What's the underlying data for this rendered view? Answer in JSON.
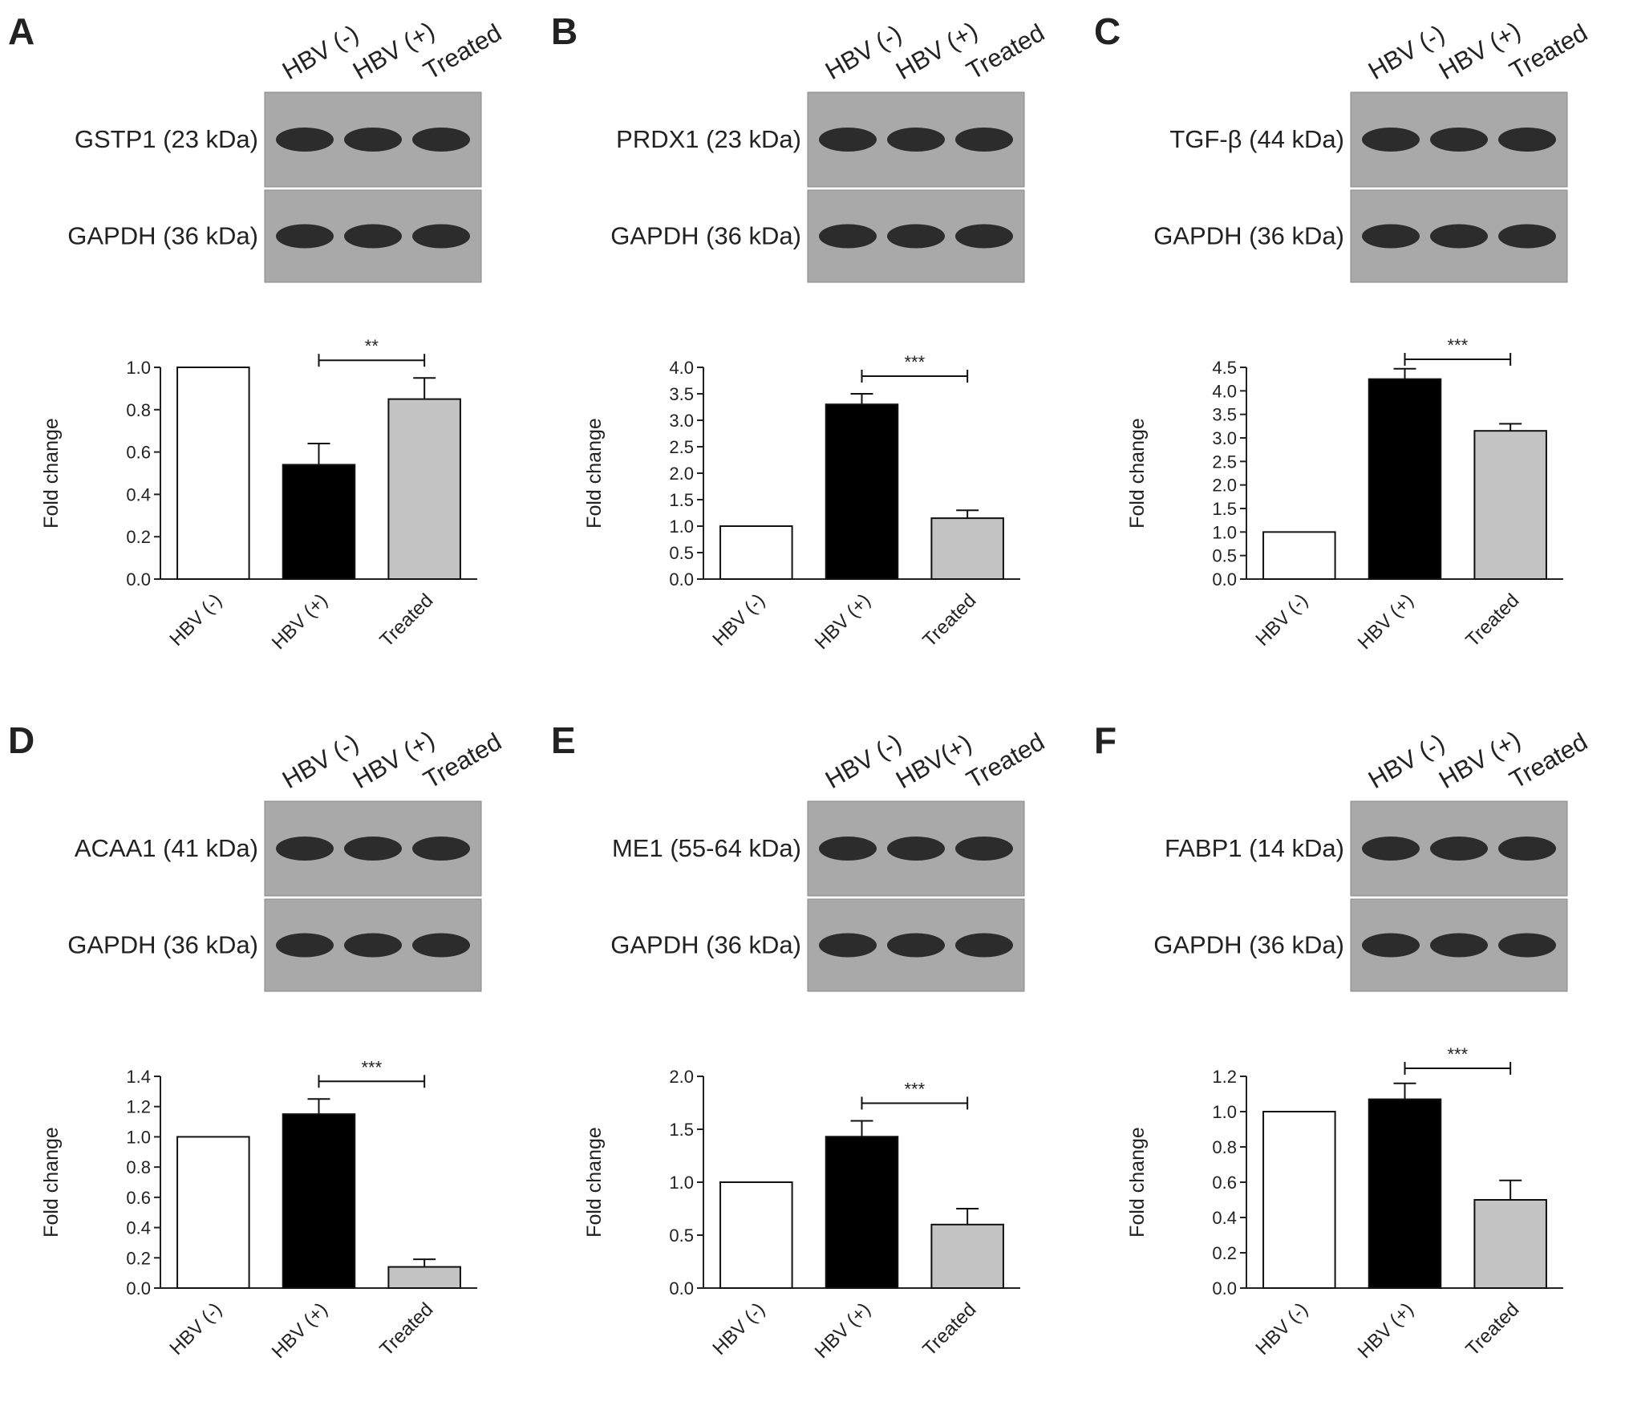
{
  "chart_data": [
    {
      "type": "bar",
      "panel": "A",
      "lanes": [
        "HBV (-)",
        "HBV (+)",
        "Treated"
      ],
      "blots": [
        "GSTP1 (23 kDa)",
        "GAPDH (36 kDa)"
      ],
      "ylabel": "Fold change",
      "categories": [
        "HBV (-)",
        "HBV (+)",
        "Treated"
      ],
      "values": [
        1.0,
        0.54,
        0.85
      ],
      "errors": [
        null,
        0.1,
        0.1
      ],
      "colors": [
        "#ffffff",
        "#000000",
        "#c4c4c4"
      ],
      "ylim": [
        0,
        1
      ],
      "yticks": [
        {
          "value": 0,
          "label": "0.0"
        },
        0.2,
        0.4,
        0.6,
        0.8,
        {
          "value": 1,
          "label": "1.0"
        }
      ],
      "significance": "**"
    },
    {
      "type": "bar",
      "panel": "B",
      "lanes": [
        "HBV (-)",
        "HBV (+)",
        "Treated"
      ],
      "blots": [
        "PRDX1 (23 kDa)",
        "GAPDH (36 kDa)"
      ],
      "ylabel": "Fold change",
      "categories": [
        "HBV (-)",
        "HBV (+)",
        "Treated"
      ],
      "values": [
        1.0,
        3.3,
        1.15
      ],
      "errors": [
        null,
        0.2,
        0.15
      ],
      "colors": [
        "#ffffff",
        "#000000",
        "#c4c4c4"
      ],
      "ylim": [
        0,
        4
      ],
      "yticks": [
        {
          "value": 0,
          "label": "0.0"
        },
        0.5,
        {
          "value": 1,
          "label": "1.0"
        },
        1.5,
        {
          "value": 2,
          "label": "2.0"
        },
        2.5,
        {
          "value": 3,
          "label": "3.0"
        },
        3.5,
        {
          "value": 4,
          "label": "4.0"
        }
      ],
      "significance": "***"
    },
    {
      "type": "bar",
      "panel": "C",
      "lanes": [
        "HBV (-)",
        "HBV (+)",
        "Treated"
      ],
      "blots": [
        "TGF-β (44 kDa)",
        "GAPDH (36 kDa)"
      ],
      "ylabel": "Fold change",
      "categories": [
        "HBV (-)",
        "HBV (+)",
        "Treated"
      ],
      "values": [
        1.0,
        4.25,
        3.15
      ],
      "errors": [
        null,
        0.22,
        0.15
      ],
      "colors": [
        "#ffffff",
        "#000000",
        "#c4c4c4"
      ],
      "ylim": [
        0,
        4.5
      ],
      "yticks": [
        {
          "value": 0,
          "label": "0.0"
        },
        0.5,
        {
          "value": 1,
          "label": "1.0"
        },
        1.5,
        {
          "value": 2,
          "label": "2.0"
        },
        2.5,
        {
          "value": 3,
          "label": "3.0"
        },
        3.5,
        {
          "value": 4,
          "label": "4.0"
        },
        4.5
      ],
      "significance": "***"
    },
    {
      "type": "bar",
      "panel": "D",
      "lanes": [
        "HBV (-)",
        "HBV (+)",
        "Treated"
      ],
      "blots": [
        "ACAA1 (41 kDa)",
        "GAPDH (36 kDa)"
      ],
      "ylabel": "Fold change",
      "categories": [
        "HBV (-)",
        "HBV (+)",
        "Treated"
      ],
      "values": [
        1.0,
        1.15,
        0.14
      ],
      "errors": [
        null,
        0.1,
        0.05
      ],
      "colors": [
        "#ffffff",
        "#000000",
        "#c4c4c4"
      ],
      "ylim": [
        0,
        1.4
      ],
      "yticks": [
        {
          "value": 0,
          "label": "0.0"
        },
        0.2,
        0.4,
        0.6,
        0.8,
        {
          "value": 1,
          "label": "1.0"
        },
        1.2,
        1.4
      ],
      "significance": "***"
    },
    {
      "type": "bar",
      "panel": "E",
      "lanes": [
        "HBV (-)",
        "HBV(+)",
        "Treated"
      ],
      "blots": [
        "ME1 (55-64 kDa)",
        "GAPDH (36 kDa)"
      ],
      "ylabel": "Fold change",
      "categories": [
        "HBV (-)",
        "HBV (+)",
        "Treated"
      ],
      "values": [
        1.0,
        1.43,
        0.6
      ],
      "errors": [
        null,
        0.15,
        0.15
      ],
      "colors": [
        "#ffffff",
        "#000000",
        "#c4c4c4"
      ],
      "ylim": [
        0,
        2
      ],
      "yticks": [
        {
          "value": 0,
          "label": "0.0"
        },
        0.5,
        {
          "value": 1,
          "label": "1.0"
        },
        1.5,
        {
          "value": 2,
          "label": "2.0"
        }
      ],
      "significance": "***"
    },
    {
      "type": "bar",
      "panel": "F",
      "lanes": [
        "HBV (-)",
        "HBV (+)",
        "Treated"
      ],
      "blots": [
        "FABP1 (14 kDa)",
        "GAPDH (36 kDa)"
      ],
      "ylabel": "Fold change",
      "categories": [
        "HBV (-)",
        "HBV (+)",
        "Treated"
      ],
      "values": [
        1.0,
        1.07,
        0.5
      ],
      "errors": [
        null,
        0.09,
        0.11
      ],
      "colors": [
        "#ffffff",
        "#000000",
        "#c4c4c4"
      ],
      "ylim": [
        0,
        1.2
      ],
      "yticks": [
        {
          "value": 0,
          "label": "0.0"
        },
        0.2,
        0.4,
        0.6,
        0.8,
        {
          "value": 1,
          "label": "1.0"
        },
        1.2
      ],
      "significance": "***"
    }
  ]
}
